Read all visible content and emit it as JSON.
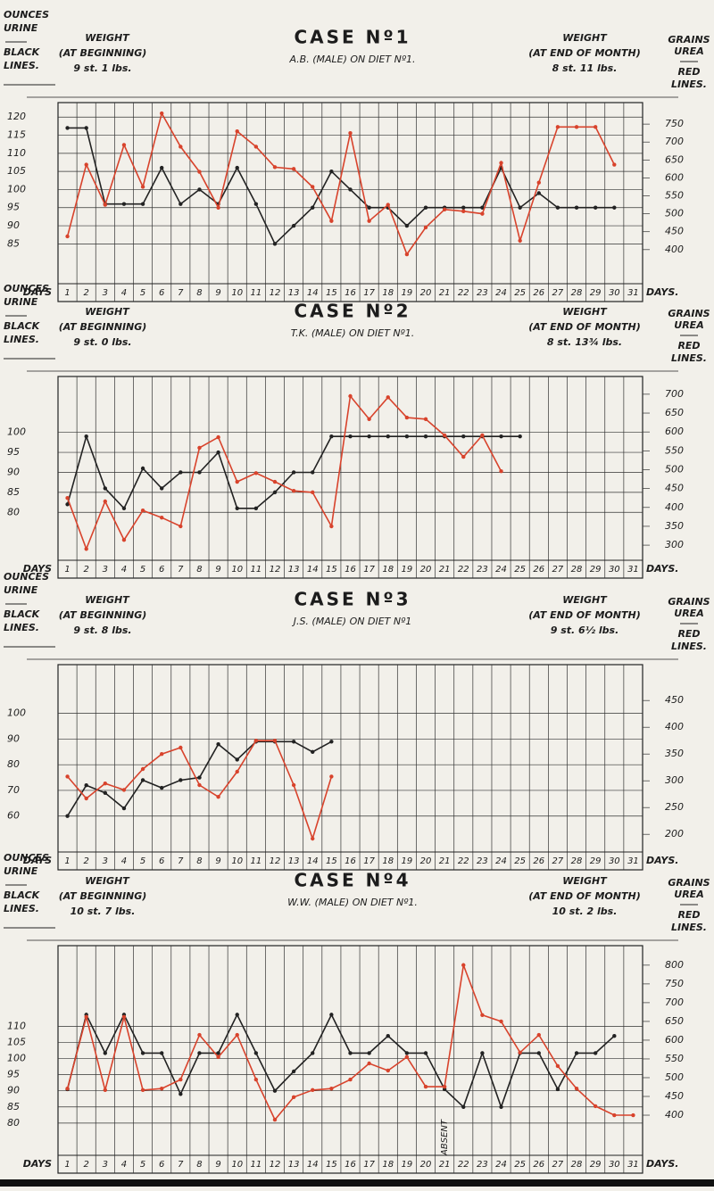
{
  "chart_data": [
    {
      "type": "line",
      "title": "CASE Nº1",
      "subtitle": "A.B. (MALE) ON DIET Nº1.",
      "y_label_lines": [
        "OUNCES",
        "URINE"
      ],
      "y_legend_lines": [
        "BLACK",
        "LINES."
      ],
      "y2_label_lines": [
        "GRAINS",
        "UREA"
      ],
      "y2_legend_lines": [
        "RED",
        "LINES."
      ],
      "weight_start": [
        "WEIGHT",
        "(AT BEGINNING)",
        "9 st. 1 lbs."
      ],
      "weight_end": [
        "WEIGHT",
        "(AT END OF MONTH)",
        "8 st. 11 lbs."
      ],
      "x_label": "DAYS",
      "x_label_right": "DAYS.",
      "categories": [
        "1",
        "2",
        "3",
        "4",
        "5",
        "6",
        "7",
        "8",
        "9",
        "10",
        "11",
        "12",
        "13",
        "14",
        "15",
        "16",
        "17",
        "18",
        "19",
        "20",
        "21",
        "22",
        "23",
        "24",
        "25",
        "26",
        "27",
        "28",
        "29",
        "30",
        "31"
      ],
      "ylim": [
        74,
        124
      ],
      "yticks": [
        120,
        115,
        110,
        105,
        100,
        95,
        90,
        85
      ],
      "y2lim": [
        305,
        810
      ],
      "y2ticks": [
        750,
        700,
        650,
        600,
        550,
        500,
        450,
        400
      ],
      "series": [
        {
          "color": "#222222",
          "values": [
            117,
            117,
            96,
            96,
            96,
            106,
            96,
            100,
            96,
            106,
            96,
            85,
            90,
            95,
            105,
            100,
            95,
            95,
            90,
            95,
            95,
            95,
            95,
            106,
            95,
            99,
            95,
            95,
            95,
            95,
            null
          ]
        },
        {
          "color": "#d8432c",
          "axis": "y2",
          "values": [
            437,
            637,
            525,
            692,
            575,
            780,
            687,
            617,
            517,
            730,
            687,
            630,
            625,
            575,
            480,
            725,
            480,
            525,
            387,
            462,
            512,
            507,
            500,
            642,
            425,
            587,
            742,
            742,
            742,
            637,
            null
          ]
        }
      ]
    },
    {
      "type": "line",
      "title": "CASE Nº2",
      "subtitle": "T.K. (MALE) ON DIET Nº1.",
      "y_label_lines": [
        "OUNCES",
        "URINE"
      ],
      "y_legend_lines": [
        "BLACK",
        "LINES."
      ],
      "y2_label_lines": [
        "GRAINS",
        "UREA"
      ],
      "y2_legend_lines": [
        "RED",
        "LINES."
      ],
      "weight_start": [
        "WEIGHT",
        "(AT BEGINNING)",
        "9 st. 0 lbs."
      ],
      "weight_end": [
        "WEIGHT",
        "(AT END OF MONTH)",
        "8 st. 13¾ lbs."
      ],
      "x_label": "DAYS",
      "x_label_right": "DAYS.",
      "categories": [
        "1",
        "2",
        "3",
        "4",
        "5",
        "6",
        "7",
        "8",
        "9",
        "10",
        "11",
        "12",
        "13",
        "14",
        "15",
        "16",
        "17",
        "18",
        "19",
        "20",
        "21",
        "22",
        "23",
        "24",
        "25",
        "26",
        "27",
        "28",
        "29",
        "30",
        "31"
      ],
      "ylim": [
        68,
        114
      ],
      "yticks": [
        100,
        95,
        90,
        85,
        80
      ],
      "y2lim": [
        260,
        747
      ],
      "y2ticks": [
        700,
        650,
        600,
        550,
        500,
        450,
        400,
        350,
        300
      ],
      "series": [
        {
          "color": "#222222",
          "values": [
            82,
            99,
            86,
            81,
            91,
            86,
            90,
            90,
            95,
            81,
            81,
            85,
            90,
            90,
            99,
            99,
            99,
            99,
            99,
            99,
            99,
            99,
            99,
            99,
            99,
            null,
            null,
            null,
            null,
            null,
            null
          ]
        },
        {
          "color": "#d8432c",
          "axis": "y2",
          "values": [
            425,
            290,
            416,
            314,
            392,
            373,
            350,
            558,
            586,
            468,
            491,
            468,
            444,
            440,
            350,
            695,
            634,
            692,
            638,
            634,
            591,
            534,
            591,
            496,
            null,
            null,
            null,
            null,
            null,
            null,
            null
          ]
        }
      ]
    },
    {
      "type": "line",
      "title": "CASE Nº3",
      "subtitle": "J.S. (MALE) ON DIET Nº1",
      "y_label_lines": [
        "OUNCES",
        "URINE"
      ],
      "y_legend_lines": [
        "BLACK",
        "LINES."
      ],
      "y2_label_lines": [
        "GRAINS",
        "UREA"
      ],
      "y2_legend_lines": [
        "RED",
        "LINES."
      ],
      "weight_start": [
        "WEIGHT",
        "(AT BEGINNING)",
        "9 st. 8 lbs."
      ],
      "weight_end": [
        "WEIGHT",
        "(AT END OF MONTH)",
        "9 st. 6½ lbs."
      ],
      "x_label": "DAYS",
      "x_label_right": "DAYS.",
      "categories": [
        "1",
        "2",
        "3",
        "4",
        "5",
        "6",
        "7",
        "8",
        "9",
        "10",
        "11",
        "12",
        "13",
        "14",
        "15",
        "16",
        "17",
        "18",
        "19",
        "20",
        "21",
        "22",
        "23",
        "24",
        "25",
        "26",
        "27",
        "28",
        "29",
        "30",
        "31"
      ],
      "ylim": [
        46,
        119
      ],
      "yticks": [
        100,
        90,
        80,
        70,
        60
      ],
      "y2lim": [
        167,
        517
      ],
      "y2ticks": [
        450,
        400,
        350,
        300,
        250,
        200
      ],
      "series": [
        {
          "color": "#222222",
          "values": [
            60,
            72,
            69,
            63,
            74,
            71,
            74,
            75,
            88,
            82,
            89,
            89,
            89,
            85,
            89,
            null,
            null,
            null,
            null,
            null,
            null,
            null,
            null,
            null,
            null,
            null,
            null,
            null,
            null,
            null,
            null
          ]
        },
        {
          "color": "#d8432c",
          "axis": "y2",
          "values": [
            308,
            267,
            295,
            283,
            322,
            350,
            362,
            292,
            270,
            317,
            375,
            375,
            292,
            192,
            308,
            null,
            null,
            null,
            null,
            null,
            null,
            null,
            null,
            null,
            null,
            null,
            null,
            null,
            null,
            null,
            null
          ]
        }
      ]
    },
    {
      "type": "line",
      "title": "CASE Nº4",
      "subtitle": "W.W. (MALE) ON DIET Nº1.",
      "y_label_lines": [
        "OUNCES",
        "URINE"
      ],
      "y_legend_lines": [
        "BLACK",
        "LINES."
      ],
      "y2_label_lines": [
        "GRAINS",
        "UREA"
      ],
      "y2_legend_lines": [
        "RED",
        "LINES."
      ],
      "weight_start": [
        "WEIGHT",
        "(AT BEGINNING)",
        "10 st. 7 lbs."
      ],
      "weight_end": [
        "WEIGHT",
        "(AT END OF MONTH)",
        "10 st. 2 lbs."
      ],
      "x_label": "DAYS",
      "x_label_right": "DAYS.",
      "annotation": "ABSENT",
      "categories": [
        "1",
        "2",
        "3",
        "4",
        "5",
        "6",
        "7",
        "8",
        "9",
        "10",
        "11",
        "12",
        "13",
        "14",
        "15",
        "16",
        "17",
        "18",
        "19",
        "20",
        "21",
        "22",
        "23",
        "24",
        "25",
        "26",
        "27",
        "28",
        "29",
        "30",
        "31"
      ],
      "ylim": [
        70,
        135
      ],
      "yticks": [
        110,
        105,
        100,
        95,
        90,
        85,
        80
      ],
      "y2lim": [
        293,
        852
      ],
      "y2ticks": [
        800,
        750,
        700,
        650,
        600,
        550,
        500,
        450,
        400
      ],
      "series": [
        {
          "color": "#222222",
          "values": [
            90.5,
            113.6,
            101.7,
            113.6,
            101.7,
            101.7,
            89,
            101.7,
            101.7,
            113.6,
            101.7,
            90,
            96,
            101.7,
            113.6,
            101.7,
            101.7,
            107,
            101.7,
            101.7,
            90.5,
            85,
            101.7,
            85,
            101.7,
            101.7,
            90.5,
            101.7,
            101.7,
            107,
            null
          ]
        },
        {
          "color": "#d8432c",
          "axis": "y2",
          "values": [
            471,
            662,
            467,
            662,
            467,
            471,
            495,
            614,
            555,
            614,
            495,
            388,
            448,
            467,
            471,
            495,
            538,
            519,
            555,
            476,
            476,
            800,
            667,
            650,
            567,
            614,
            531,
            471,
            424,
            400,
            400
          ]
        }
      ]
    }
  ]
}
